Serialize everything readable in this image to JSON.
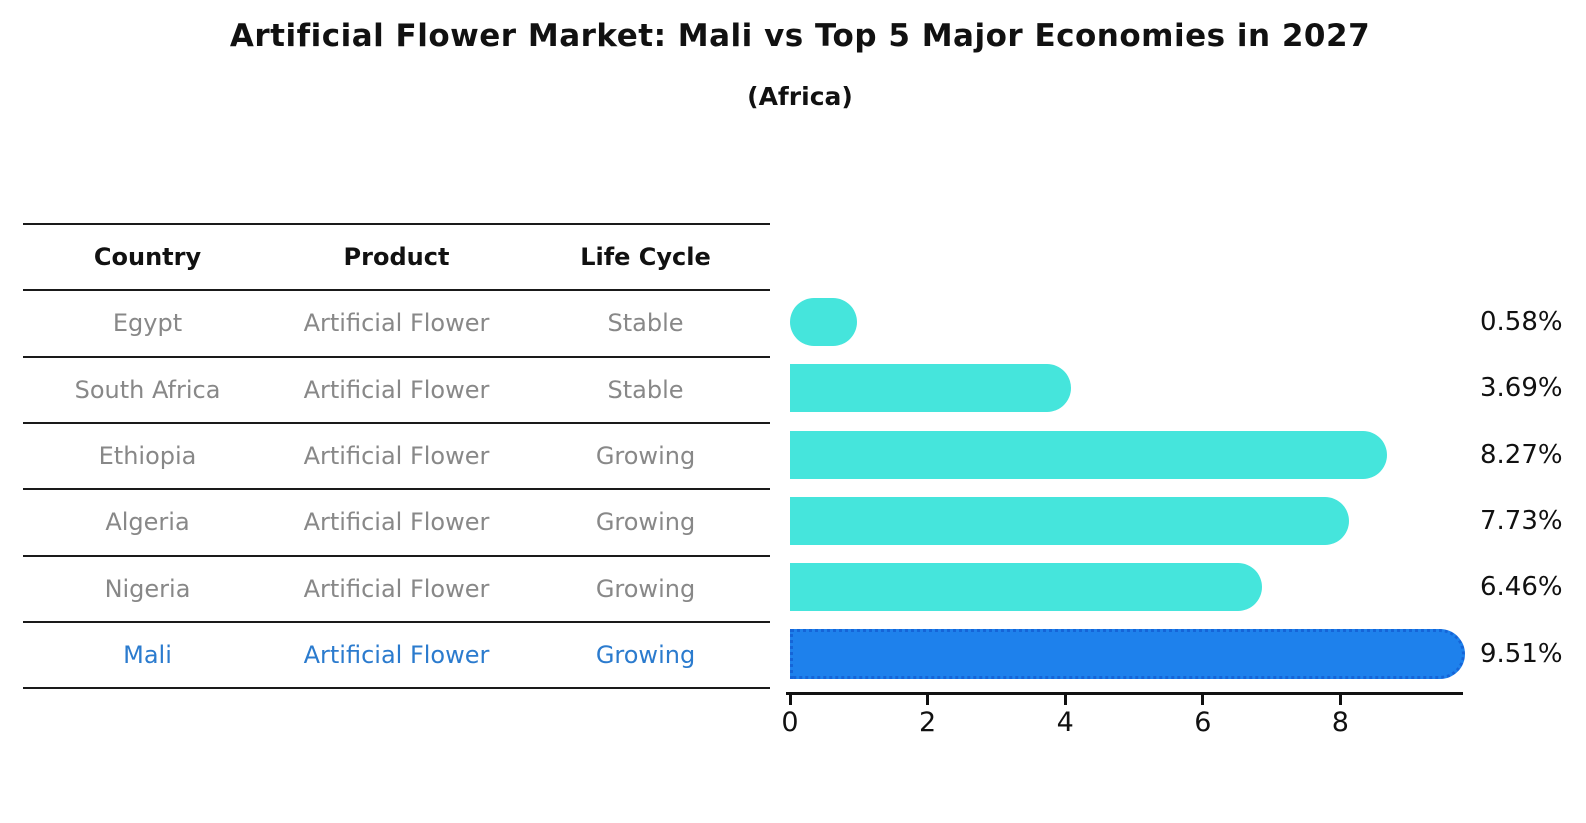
{
  "title": "Artificial Flower Market: Mali vs Top 5 Major Economies in 2027",
  "subtitle": "(Africa)",
  "table": {
    "headers": {
      "country": "Country",
      "product": "Product",
      "life_cycle": "Life Cycle"
    },
    "rows": [
      {
        "country": "Egypt",
        "product": "Artificial Flower",
        "life_cycle": "Stable"
      },
      {
        "country": "South Africa",
        "product": "Artificial Flower",
        "life_cycle": "Stable"
      },
      {
        "country": "Ethiopia",
        "product": "Artificial Flower",
        "life_cycle": "Growing"
      },
      {
        "country": "Algeria",
        "product": "Artificial Flower",
        "life_cycle": "Growing"
      },
      {
        "country": "Nigeria",
        "product": "Artificial Flower",
        "life_cycle": "Growing"
      },
      {
        "country": "Mali",
        "product": "Artificial Flower",
        "life_cycle": "Growing"
      }
    ]
  },
  "chart_data": {
    "type": "bar",
    "orientation": "horizontal",
    "categories": [
      "Egypt",
      "South Africa",
      "Ethiopia",
      "Algeria",
      "Nigeria",
      "Mali"
    ],
    "values": [
      0.58,
      3.69,
      8.27,
      7.73,
      6.46,
      9.51
    ],
    "value_labels": [
      "0.58%",
      "3.69%",
      "8.27%",
      "7.73%",
      "6.46%",
      "9.51%"
    ],
    "x_ticks": [
      "0",
      "2",
      "4",
      "6",
      "8"
    ],
    "xlim": [
      0,
      9.8
    ],
    "grid": false,
    "legend": false,
    "highlight_index": 5,
    "bar_color": "#45e5dc",
    "highlight_bar_color": "#1e81ec",
    "highlight_border_color": "#1565d8",
    "highlight_text_color": "#2b7bce",
    "table_text_color": "#888888",
    "axis_color": "#111111"
  }
}
